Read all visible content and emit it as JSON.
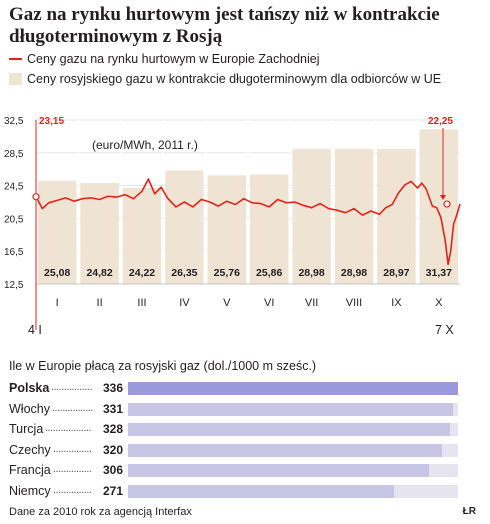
{
  "title": "Gaz na rynku hurtowym jest tańszy niż w kontrakcie długoterminowym z Rosją",
  "legend": {
    "line": "Ceny gazu na rynku hurtowym w Europie Zachodniej",
    "bars": "Ceny rosyjskiego gazu w kontrakcie długoterminowym dla odbiorców w UE"
  },
  "colors": {
    "line": "#e2231a",
    "bar_fill": "#efe3d3",
    "bar_edge": "#ffffff",
    "country_bar": "#c6c5e3",
    "country_bar_highlight": "#9b98dc",
    "country_track": "#e6e4ef"
  },
  "chart_data": [
    {
      "type": "bar+line",
      "unit_label": "(euro/MWh, 2011 r.)",
      "categories": [
        "I",
        "II",
        "III",
        "IV",
        "V",
        "VI",
        "VII",
        "VIII",
        "IX",
        "X"
      ],
      "yticks": [
        "32,5",
        "28,5",
        "24,5",
        "20,5",
        "16,5",
        "12,5"
      ],
      "ylim": [
        12.5,
        32.5
      ],
      "grid": true,
      "bars": {
        "values": [
          25.08,
          24.82,
          24.22,
          26.35,
          25.76,
          25.86,
          28.98,
          28.98,
          28.97,
          31.37
        ],
        "labels": [
          "25,08",
          "24,82",
          "24,22",
          "26,35",
          "25,76",
          "25,86",
          "28,98",
          "28,98",
          "28,97",
          "31,37"
        ]
      },
      "line": {
        "start_date": "4 I",
        "end_date": "7 X",
        "start_value_label": "23,15",
        "end_value_label": "22,25",
        "points": [
          [
            0.0,
            23.15
          ],
          [
            0.15,
            21.7
          ],
          [
            0.3,
            22.4
          ],
          [
            0.5,
            22.7
          ],
          [
            0.7,
            23.0
          ],
          [
            0.9,
            22.6
          ],
          [
            1.1,
            22.9
          ],
          [
            1.3,
            23.0
          ],
          [
            1.5,
            22.8
          ],
          [
            1.7,
            23.2
          ],
          [
            1.9,
            23.1
          ],
          [
            2.1,
            23.4
          ],
          [
            2.3,
            22.9
          ],
          [
            2.5,
            23.8
          ],
          [
            2.65,
            25.3
          ],
          [
            2.8,
            23.5
          ],
          [
            2.95,
            24.3
          ],
          [
            3.1,
            23.0
          ],
          [
            3.3,
            21.9
          ],
          [
            3.5,
            22.5
          ],
          [
            3.7,
            21.9
          ],
          [
            3.9,
            22.8
          ],
          [
            4.1,
            22.5
          ],
          [
            4.3,
            22.0
          ],
          [
            4.5,
            22.6
          ],
          [
            4.7,
            22.2
          ],
          [
            4.9,
            22.9
          ],
          [
            5.1,
            22.4
          ],
          [
            5.3,
            22.3
          ],
          [
            5.5,
            21.9
          ],
          [
            5.7,
            22.8
          ],
          [
            5.9,
            22.4
          ],
          [
            6.1,
            22.5
          ],
          [
            6.3,
            22.1
          ],
          [
            6.5,
            21.8
          ],
          [
            6.7,
            22.3
          ],
          [
            6.9,
            21.7
          ],
          [
            7.1,
            21.5
          ],
          [
            7.3,
            21.2
          ],
          [
            7.5,
            21.7
          ],
          [
            7.7,
            20.9
          ],
          [
            7.9,
            21.4
          ],
          [
            8.1,
            21.0
          ],
          [
            8.25,
            21.8
          ],
          [
            8.4,
            22.2
          ],
          [
            8.55,
            23.6
          ],
          [
            8.7,
            24.6
          ],
          [
            8.85,
            25.0
          ],
          [
            9.0,
            24.2
          ],
          [
            9.1,
            24.8
          ],
          [
            9.2,
            24.1
          ],
          [
            9.35,
            22.0
          ],
          [
            9.45,
            21.8
          ],
          [
            9.55,
            20.6
          ],
          [
            9.65,
            17.8
          ],
          [
            9.72,
            14.9
          ],
          [
            9.78,
            16.5
          ],
          [
            9.85,
            19.8
          ],
          [
            9.93,
            21.0
          ],
          [
            10.0,
            22.25
          ]
        ]
      }
    },
    {
      "type": "bar",
      "title": "Ile w Europie płacą za rosyjski gaz (dol./1000 m sześc.)",
      "categories": [
        "Polska",
        "Włochy",
        "Turcja",
        "Czechy",
        "Francja",
        "Niemcy"
      ],
      "values": [
        336,
        331,
        328,
        320,
        306,
        271
      ],
      "highlight": "Polska",
      "xlim": [
        0,
        336
      ]
    }
  ],
  "source": "Dane za 2010 rok za agencją Interfax",
  "author": "ŁR"
}
